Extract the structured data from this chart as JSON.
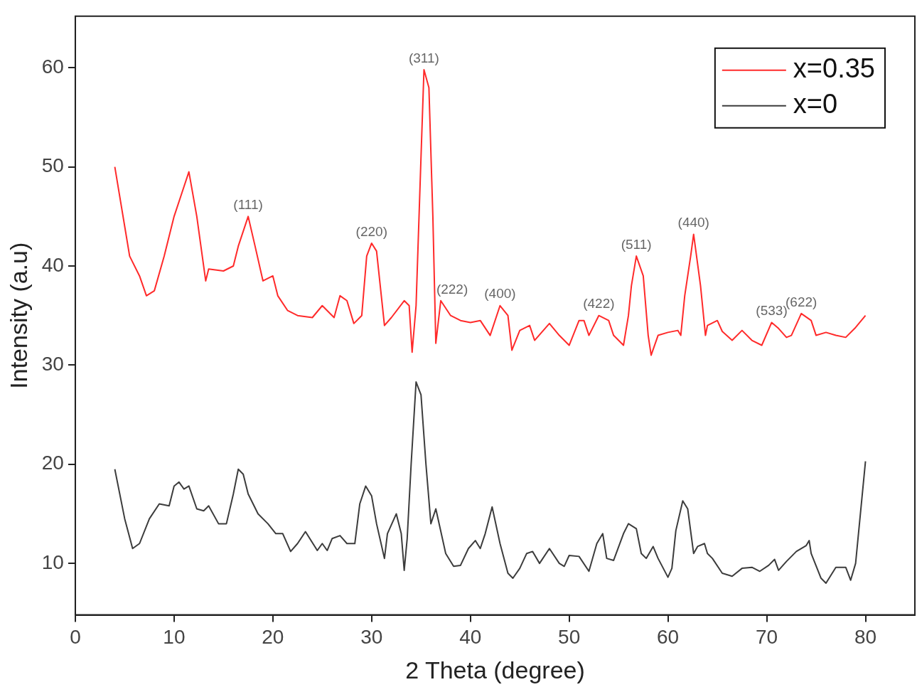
{
  "chart_data": {
    "type": "line",
    "xlabel": "2 Theta (degree)",
    "ylabel": "Intensity (a.u)",
    "xlim": [
      0,
      85
    ],
    "xticks": [
      0,
      10,
      20,
      30,
      40,
      50,
      60,
      70,
      80
    ],
    "ylim": [
      4.8,
      65.2
    ],
    "yticks": [
      10,
      20,
      30,
      40,
      50,
      60
    ],
    "grid": false,
    "legend": "top right",
    "marker": "none",
    "line_style": "solid",
    "series": [
      {
        "name": "x=0.35",
        "color": "#ff2a2a",
        "x": [
          4,
          5,
          5.5,
          6.5,
          7.2,
          8,
          9,
          10,
          11,
          11.5,
          12.3,
          13.2,
          13.5,
          15,
          16,
          16.5,
          17.5,
          18.2,
          19,
          20,
          20.5,
          21.5,
          22.5,
          24,
          25,
          26.2,
          26.8,
          27.5,
          28.2,
          29,
          29.5,
          30,
          30.5,
          31.3,
          32,
          33.3,
          33.8,
          34.1,
          34.5,
          35,
          35.3,
          35.8,
          36.2,
          36.5,
          37,
          38,
          39,
          40,
          41,
          42,
          43,
          43.8,
          44.2,
          45,
          46,
          46.5,
          48,
          49,
          50,
          51,
          51.5,
          52,
          53,
          54,
          54.5,
          55.5,
          56,
          56.3,
          56.8,
          57.5,
          58,
          58.3,
          59,
          60,
          61,
          61.3,
          61.7,
          62.3,
          62.6,
          63.3,
          63.8,
          64,
          65,
          65.5,
          66.5,
          67.5,
          68.5,
          69.5,
          70.5,
          71.2,
          72,
          72.5,
          73.5,
          74.5,
          75,
          76,
          77,
          78,
          79,
          80
        ],
        "values": [
          50,
          44,
          41,
          39,
          37,
          37.5,
          41,
          45,
          48,
          49.5,
          45,
          38.5,
          39.7,
          39.5,
          40,
          42,
          45,
          42,
          38.5,
          39,
          37,
          35.5,
          35,
          34.8,
          36,
          34.8,
          37,
          36.5,
          34.2,
          35,
          41,
          42.3,
          41.5,
          34,
          34.8,
          36.5,
          36,
          31.3,
          36,
          51,
          59.8,
          58,
          45,
          32.2,
          36.5,
          35,
          34.5,
          34.3,
          34.5,
          33,
          36,
          35,
          31.5,
          33.5,
          34,
          32.5,
          34.2,
          33,
          32,
          34.5,
          34.5,
          33,
          35,
          34.5,
          33,
          32,
          35,
          38,
          41,
          39,
          33,
          31,
          33,
          33.3,
          33.5,
          33,
          37,
          41,
          43.2,
          38,
          33,
          34,
          34.5,
          33.4,
          32.5,
          33.5,
          32.5,
          32,
          34.3,
          33.7,
          32.8,
          33,
          35.2,
          34.5,
          33,
          33.3,
          33,
          32.8,
          33.8,
          35
        ]
      },
      {
        "name": "x=0",
        "color": "#3c3c3c",
        "x": [
          4,
          5,
          5.8,
          6.5,
          7.5,
          8.5,
          9.5,
          10,
          10.5,
          11,
          11.5,
          12.3,
          13,
          13.5,
          14.5,
          15.3,
          16,
          16.5,
          17,
          17.5,
          18.5,
          19.5,
          20.3,
          21,
          21.8,
          22.5,
          23.3,
          24.5,
          25,
          25.5,
          26,
          26.8,
          27.5,
          28.3,
          28.8,
          29.4,
          30,
          30.5,
          31.3,
          31.6,
          32.5,
          33,
          33.3,
          33.6,
          34,
          34.5,
          35,
          35.5,
          36,
          36.5,
          37.5,
          38.3,
          39,
          39.8,
          40.5,
          41,
          41.5,
          42.2,
          43,
          43.8,
          44.3,
          45,
          45.7,
          46.3,
          47,
          48,
          49,
          49.5,
          50,
          51,
          52,
          52.8,
          53.4,
          53.8,
          54.5,
          55.5,
          56,
          56.8,
          57.3,
          57.8,
          58.5,
          59,
          60,
          60.4,
          60.8,
          61.5,
          62,
          62.6,
          63,
          63.7,
          64,
          64.5,
          65.5,
          66.5,
          67.5,
          68.5,
          69.3,
          70.2,
          70.8,
          71.2,
          72,
          73,
          74,
          74.3,
          74.5,
          75.5,
          76,
          77,
          78,
          78.5,
          79,
          80
        ],
        "values": [
          19.5,
          14.5,
          11.5,
          12,
          14.5,
          16,
          15.8,
          17.8,
          18.2,
          17.5,
          17.8,
          15.5,
          15.3,
          15.8,
          14,
          14,
          17,
          19.5,
          19,
          17,
          15,
          14,
          13,
          13,
          11.2,
          12,
          13.2,
          11.3,
          12,
          11.3,
          12.5,
          12.8,
          12,
          12,
          16,
          17.8,
          16.8,
          14,
          10.5,
          13,
          15,
          13,
          9.3,
          12.5,
          20,
          28.3,
          27,
          20,
          14,
          15.5,
          11,
          9.7,
          9.8,
          11.5,
          12.3,
          11.5,
          13,
          15.7,
          12,
          9,
          8.5,
          9.5,
          11,
          11.2,
          10,
          11.5,
          10,
          9.7,
          10.8,
          10.7,
          9.2,
          12,
          13,
          10.5,
          10.3,
          13,
          14,
          13.5,
          11,
          10.5,
          11.7,
          10.5,
          8.6,
          9.5,
          13.3,
          16.3,
          15.5,
          11,
          11.7,
          12,
          11,
          10.5,
          9,
          8.7,
          9.5,
          9.6,
          9.2,
          9.8,
          10.4,
          9.3,
          10.2,
          11.2,
          11.8,
          12.3,
          11,
          8.5,
          8,
          9.6,
          9.6,
          8.3,
          10,
          20.3
        ]
      }
    ],
    "annotations": [
      {
        "text": "(111)",
        "x": 17.5,
        "y": 45
      },
      {
        "text": "(220)",
        "x": 30,
        "y": 42.3
      },
      {
        "text": "(311)",
        "x": 35.3,
        "y": 59.8
      },
      {
        "text": "(222)",
        "x": 37,
        "y": 36.5
      },
      {
        "text": "(400)",
        "x": 43,
        "y": 36
      },
      {
        "text": "(422)",
        "x": 53,
        "y": 35
      },
      {
        "text": "(511)",
        "x": 56.8,
        "y": 41
      },
      {
        "text": "(440)",
        "x": 62.6,
        "y": 43.2
      },
      {
        "text": "(533)",
        "x": 70.5,
        "y": 34.3
      },
      {
        "text": "(622)",
        "x": 73.5,
        "y": 35.2
      }
    ]
  }
}
